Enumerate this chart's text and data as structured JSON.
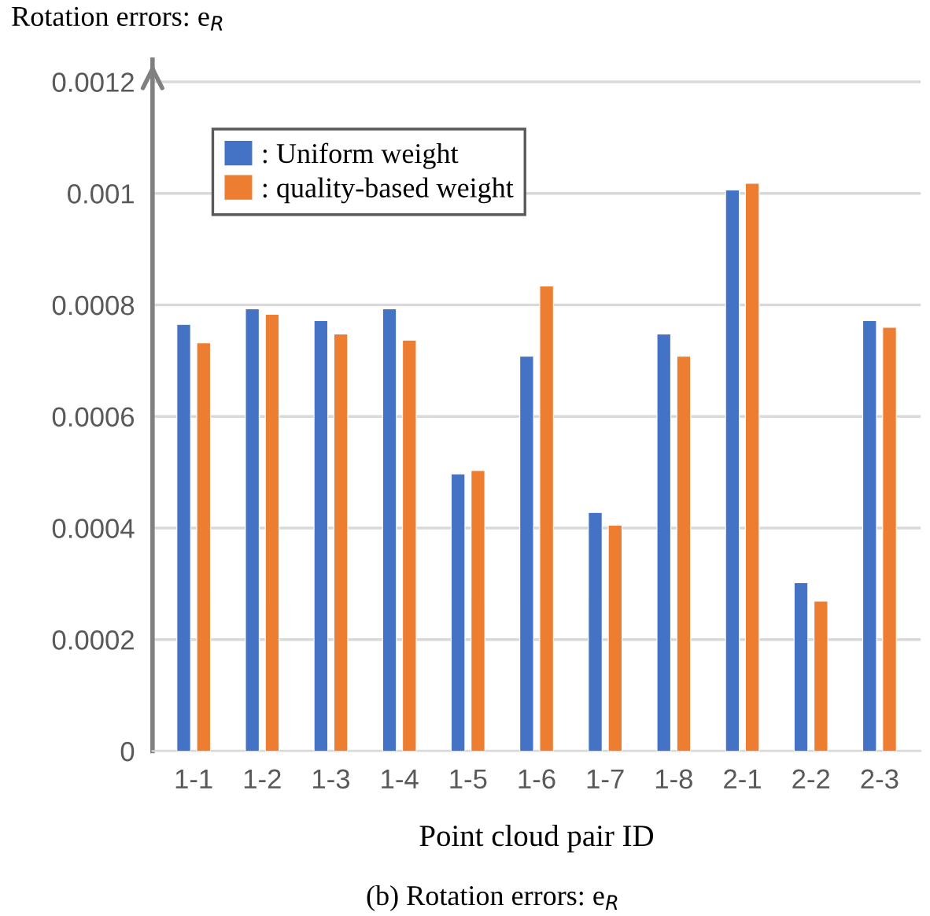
{
  "chart_data": {
    "type": "bar",
    "title": "Rotation errors: e$_{R}$",
    "xlabel": "Point cloud pair ID",
    "annotations": [
      "(b) Rotation errors: e$_{R}$"
    ],
    "categories": [
      "1-1",
      "1-2",
      "1-3",
      "1-4",
      "1-5",
      "1-6",
      "1-7",
      "1-8",
      "2-1",
      "2-2",
      "2-3"
    ],
    "series": [
      {
        "name": ": Uniform weight",
        "color": "#4472c4",
        "values": [
          0.000765,
          0.000793,
          0.000772,
          0.000793,
          0.000497,
          0.000708,
          0.000428,
          0.000748,
          0.001006,
          0.000302,
          0.000772
        ]
      },
      {
        "name": ": quality-based weight",
        "color": "#ed7d31",
        "values": [
          0.000732,
          0.000783,
          0.000748,
          0.000737,
          0.000503,
          0.000834,
          0.000405,
          0.000708,
          0.001018,
          0.000269,
          0.00076
        ]
      }
    ],
    "ylim": [
      0,
      0.00124
    ],
    "yticks": [
      0,
      0.0002,
      0.0004,
      0.0006,
      0.0008,
      0.001,
      0.0012
    ],
    "grid": "y",
    "legend": "top left"
  }
}
